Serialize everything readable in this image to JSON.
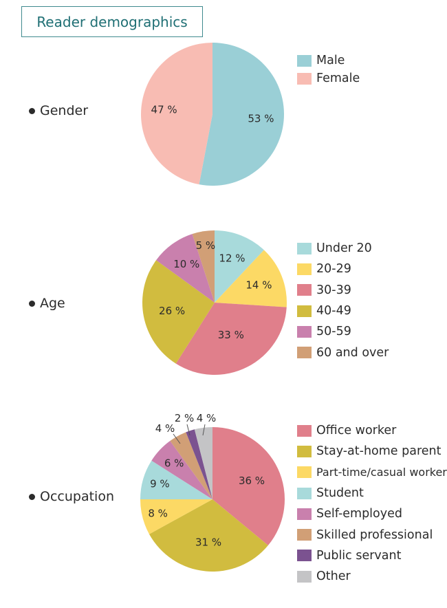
{
  "page": {
    "title": "Reader demographics"
  },
  "chart_data": [
    {
      "type": "pie",
      "label": "Gender",
      "slices": [
        {
          "name": "Male",
          "value": 53,
          "label": "53 %",
          "color": "#9acfd6"
        },
        {
          "name": "Female",
          "value": 47,
          "label": "47 %",
          "color": "#f8bcb3"
        }
      ]
    },
    {
      "type": "pie",
      "label": "Age",
      "slices": [
        {
          "name": "Under 20",
          "value": 12,
          "label": "12 %",
          "color": "#a8dadb"
        },
        {
          "name": "20-29",
          "value": 14,
          "label": "14 %",
          "color": "#fcd965"
        },
        {
          "name": "30-39",
          "value": 33,
          "label": "33 %",
          "color": "#e07f8b"
        },
        {
          "name": "40-49",
          "value": 26,
          "label": "26 %",
          "color": "#d1bc3f"
        },
        {
          "name": "50-59",
          "value": 10,
          "label": "10 %",
          "color": "#c980ad"
        },
        {
          "name": "60 and over",
          "value": 5,
          "label": "5 %",
          "color": "#d19f76"
        }
      ]
    },
    {
      "type": "pie",
      "label": "Occupation",
      "slices": [
        {
          "name": "Office worker",
          "value": 36,
          "label": "36 %",
          "color": "#e07f8b"
        },
        {
          "name": "Stay-at-home parent",
          "value": 31,
          "label": "31 %",
          "color": "#d1bc3f"
        },
        {
          "name": "Part-time/casual worker",
          "value": 8,
          "label": "8 %",
          "color": "#fcd965"
        },
        {
          "name": "Student",
          "value": 9,
          "label": "9 %",
          "color": "#a8dadb"
        },
        {
          "name": "Self-employed",
          "value": 6,
          "label": "6 %",
          "color": "#c980ad"
        },
        {
          "name": "Skilled professional",
          "value": 4,
          "label": "4 %",
          "color": "#d19f76"
        },
        {
          "name": "Public servant",
          "value": 2,
          "label": "2 %",
          "color": "#7b5290"
        },
        {
          "name": "Other",
          "value": 4,
          "label": "4 %",
          "color": "#c4c4c6"
        }
      ]
    }
  ]
}
